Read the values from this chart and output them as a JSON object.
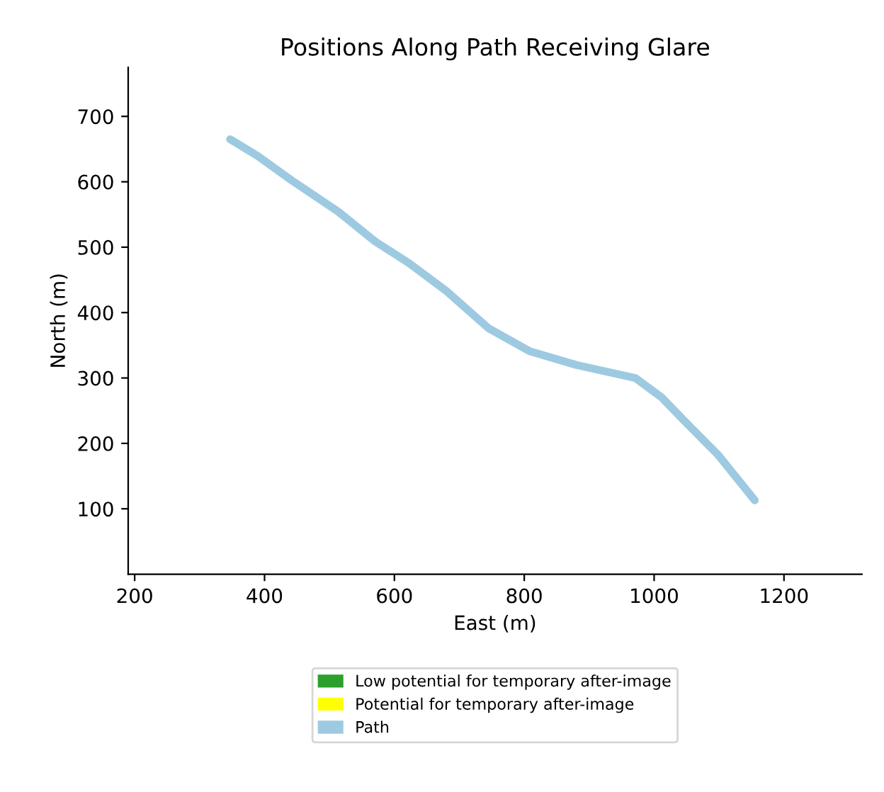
{
  "chart_data": {
    "type": "line",
    "title": "Positions Along Path Receiving Glare",
    "xlabel": "East (m)",
    "ylabel": "North (m)",
    "x": [
      347,
      390,
      442,
      514,
      570,
      622,
      680,
      745,
      808,
      880,
      971,
      1012,
      1046,
      1098,
      1155
    ],
    "series": [
      {
        "name": "Low potential for temporary after-image",
        "color": "#2ca02c",
        "values": [
          null,
          null,
          null,
          null,
          null,
          null,
          null,
          null,
          null,
          null,
          null,
          null,
          null,
          null,
          null
        ]
      },
      {
        "name": "Potential for temporary after-image",
        "color": "#ffff00",
        "values": [
          null,
          null,
          null,
          null,
          null,
          null,
          null,
          null,
          null,
          null,
          null,
          null,
          null,
          null,
          null
        ]
      },
      {
        "name": "Path",
        "color": "#9ecae1",
        "values": [
          665,
          639,
          602,
          554,
          509,
          476,
          433,
          376,
          341,
          320,
          300,
          270,
          235,
          183,
          113
        ]
      }
    ],
    "xlim": [
      190,
      1320
    ],
    "ylim": [
      0,
      775
    ],
    "xticks": [
      200,
      400,
      600,
      800,
      1000,
      1200
    ],
    "yticks": [
      100,
      200,
      300,
      400,
      500,
      600,
      700
    ],
    "grid": false,
    "legend": "bottom"
  }
}
